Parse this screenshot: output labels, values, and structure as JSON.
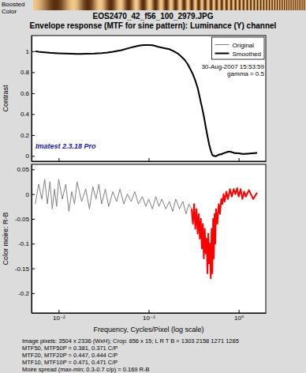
{
  "chart_data": [
    {
      "type": "line",
      "title": "EOS2470_42_f56_100_2979.JPG",
      "subtitle": "Envelope response (MTF for sine pattern): Luminance (Y) channel",
      "ylabel": "Contrast",
      "log": "x",
      "grid": false,
      "legend": "upper right",
      "tick_labels": "y",
      "xlim": [
        0.005,
        2
      ],
      "xticks": [
        0.01,
        0.1,
        1
      ],
      "ylim": [
        -0.05,
        1.15
      ],
      "yticks": [
        0,
        0.2,
        0.4,
        0.6,
        0.8,
        1
      ],
      "x": [
        0.0055,
        0.006,
        0.007,
        0.008,
        0.009,
        0.01,
        0.012,
        0.014,
        0.016,
        0.018,
        0.02,
        0.025,
        0.03,
        0.035,
        0.04,
        0.05,
        0.06,
        0.07,
        0.08,
        0.09,
        0.1,
        0.11,
        0.12,
        0.13,
        0.14,
        0.15,
        0.17,
        0.19,
        0.21,
        0.23,
        0.25,
        0.27,
        0.29,
        0.31,
        0.33,
        0.35,
        0.37,
        0.38,
        0.39,
        0.41,
        0.43,
        0.45,
        0.47,
        0.49,
        0.51,
        0.53,
        0.56,
        0.6,
        0.65,
        0.7,
        0.75,
        0.8,
        0.9,
        1.0,
        1.1,
        1.2,
        1.4,
        1.6
      ],
      "series": [
        {
          "name": "Original",
          "color": "#808080",
          "line_style": "solid",
          "values": [
            1.0,
            0.995,
            0.99,
            0.984,
            0.983,
            0.98,
            0.977,
            0.977,
            0.974,
            0.976,
            0.975,
            0.979,
            0.981,
            0.989,
            0.994,
            1.012,
            1.028,
            1.047,
            1.053,
            1.062,
            1.058,
            1.06,
            1.048,
            1.042,
            1.033,
            1.031,
            1.018,
            1.003,
            0.977,
            0.953,
            0.915,
            0.885,
            0.825,
            0.785,
            0.712,
            0.66,
            0.55,
            0.52,
            0.46,
            0.39,
            0.27,
            0.2,
            0.1,
            0.06,
            0.0,
            0.01,
            -0.01,
            0.02,
            0.01,
            0.035,
            0.03,
            0.05,
            0.02,
            0.03,
            0.015,
            0.025,
            0.02,
            0.035
          ]
        },
        {
          "name": "Smoothed",
          "color": "#000000",
          "line_style": "bold",
          "values": [
            1.0,
            0.995,
            0.99,
            0.985,
            0.982,
            0.98,
            0.978,
            0.976,
            0.975,
            0.975,
            0.976,
            0.978,
            0.982,
            0.988,
            0.995,
            1.01,
            1.03,
            1.045,
            1.055,
            1.06,
            1.06,
            1.058,
            1.05,
            1.04,
            1.035,
            1.03,
            1.02,
            1.0,
            0.98,
            0.95,
            0.92,
            0.88,
            0.83,
            0.78,
            0.72,
            0.65,
            0.56,
            0.51,
            0.47,
            0.38,
            0.28,
            0.19,
            0.11,
            0.05,
            0.01,
            0.0,
            0.0,
            0.01,
            0.02,
            0.03,
            0.04,
            0.04,
            0.03,
            0.025,
            0.02,
            0.02,
            0.025,
            0.03
          ]
        }
      ],
      "annotations": [
        "Boosted",
        "Color",
        "30-Aug-2007 15:53:59",
        "gamma = 0.5",
        "Imatest 2.3.18 Pro"
      ]
    },
    {
      "type": "line",
      "xlabel": "Frequency, Cycles/Pixel (log scale)",
      "ylabel": "Color moire: R-B",
      "log": "x",
      "grid": false,
      "xlim": [
        0.005,
        2
      ],
      "xticks": [
        {
          "value": 0.01,
          "label": "10⁻²"
        },
        {
          "value": 0.1,
          "label": "10⁻¹"
        },
        {
          "value": 1,
          "label": "10⁰"
        }
      ],
      "ylim": [
        -0.24,
        0.06
      ],
      "yticks": [
        -0.2,
        -0.15,
        -0.1,
        -0.05,
        0,
        0.05
      ],
      "x": [
        0.0055,
        0.006,
        0.0065,
        0.007,
        0.0075,
        0.008,
        0.0085,
        0.009,
        0.0095,
        0.01,
        0.011,
        0.012,
        0.013,
        0.014,
        0.015,
        0.016,
        0.018,
        0.02,
        0.022,
        0.024,
        0.026,
        0.028,
        0.03,
        0.033,
        0.036,
        0.04,
        0.044,
        0.048,
        0.053,
        0.058,
        0.064,
        0.07,
        0.077,
        0.085,
        0.093,
        0.1,
        0.11,
        0.12,
        0.13,
        0.14,
        0.155,
        0.17,
        0.185,
        0.2,
        0.22,
        0.24,
        0.26,
        0.28,
        0.3,
        0.31,
        0.32,
        0.33,
        0.34,
        0.35,
        0.36,
        0.37,
        0.38,
        0.39,
        0.4,
        0.41,
        0.42,
        0.43,
        0.44,
        0.45,
        0.46,
        0.47,
        0.48,
        0.49,
        0.5,
        0.51,
        0.52,
        0.53,
        0.54,
        0.55,
        0.56,
        0.58,
        0.6,
        0.62,
        0.64,
        0.66,
        0.68,
        0.7,
        0.73,
        0.76,
        0.8,
        0.84,
        0.88,
        0.92,
        0.96,
        1.0,
        1.05,
        1.1,
        1.15,
        1.2,
        1.3,
        1.45,
        1.6
      ],
      "series": [
        {
          "color": "#808080",
          "line_style": "solid",
          "values": [
            -0.02,
            0.02,
            -0.01,
            0.03,
            -0.02,
            0.025,
            -0.03,
            0.01,
            -0.025,
            0.03,
            -0.01,
            0.02,
            -0.035,
            0.005,
            -0.02,
            0.025,
            -0.015,
            0.01,
            -0.03,
            0.015,
            -0.01,
            0.02,
            -0.02,
            0.01,
            -0.025,
            0.005,
            -0.015,
            0.01,
            -0.02,
            0.0,
            -0.015,
            0.005,
            -0.02,
            -0.005,
            -0.025,
            -0.01,
            -0.03,
            -0.005,
            -0.025,
            -0.01,
            -0.03,
            -0.015,
            -0.035,
            -0.01,
            -0.03,
            -0.015,
            -0.04,
            -0.02,
            -0.03,
            null,
            null,
            null,
            null,
            null,
            null,
            null,
            null,
            null,
            null,
            null,
            null,
            null,
            null,
            null,
            null,
            null,
            null,
            null,
            null,
            null,
            null,
            null,
            null,
            null,
            null,
            null,
            null,
            null,
            null,
            null,
            null,
            null,
            null,
            null,
            null,
            null,
            null,
            null,
            null,
            null,
            null,
            null,
            null,
            null,
            null,
            null,
            null
          ]
        },
        {
          "color": "#ff0000",
          "line_style": "bold",
          "values": [
            null,
            null,
            null,
            null,
            null,
            null,
            null,
            null,
            null,
            null,
            null,
            null,
            null,
            null,
            null,
            null,
            null,
            null,
            null,
            null,
            null,
            null,
            null,
            null,
            null,
            null,
            null,
            null,
            null,
            null,
            null,
            null,
            null,
            null,
            null,
            null,
            null,
            null,
            null,
            null,
            null,
            null,
            null,
            null,
            null,
            null,
            null,
            null,
            -0.03,
            -0.06,
            -0.02,
            -0.07,
            -0.03,
            -0.08,
            -0.04,
            -0.09,
            -0.05,
            -0.11,
            -0.06,
            -0.13,
            -0.07,
            -0.12,
            -0.09,
            -0.16,
            -0.08,
            -0.14,
            -0.1,
            -0.17,
            -0.07,
            -0.16,
            -0.05,
            -0.13,
            -0.04,
            -0.1,
            -0.03,
            -0.06,
            -0.02,
            -0.04,
            -0.01,
            -0.02,
            0.0,
            -0.015,
            0.005,
            -0.01,
            0.01,
            -0.005,
            0.01,
            0.0,
            0.012,
            -0.005,
            0.01,
            -0.01,
            0.005,
            -0.005,
            0.008,
            -0.01,
            0.003
          ]
        }
      ],
      "annotations": [
        "Image pixels: 3504 x 2336 (WxH);  Crop: 856 x 15;  L R T B = 1303 2158 1271 1285",
        "MTF50, MTF50P = 0.381, 0.371 C/P",
        "MTF20, MTF20P = 0.447, 0.444 C/P",
        "MTF10, MTF10P = 0.471, 0.471 C/P",
        "Moire spread (max-min; 0.3-0.7 c/p) = 0.169 R-B"
      ]
    }
  ]
}
